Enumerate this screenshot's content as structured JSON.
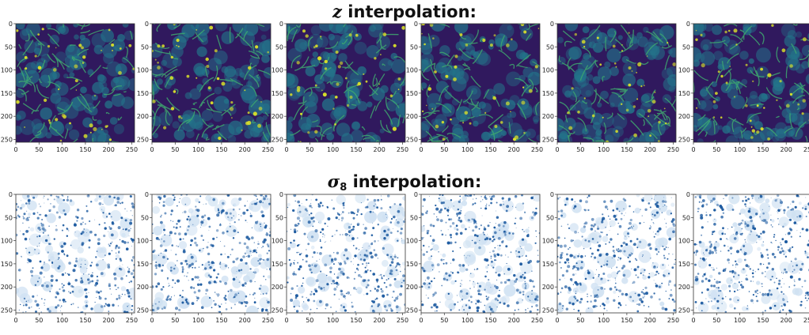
{
  "title_z": {
    "symbol": "z",
    "text": "interpolation:"
  },
  "title_sigma": {
    "symbol": "σ",
    "subscript": "8",
    "text": "interpolation:"
  },
  "ticks": {
    "y": [
      "0",
      "50",
      "100",
      "150",
      "200",
      "250"
    ],
    "x": [
      "0",
      "50",
      "100",
      "150",
      "200",
      "250"
    ]
  },
  "rows": [
    {
      "name": "z-interpolation",
      "colormap": "viridis",
      "panel_count": 6
    },
    {
      "name": "sigma8-interpolation",
      "colormap": "blues-on-white",
      "panel_count": 6
    }
  ],
  "colors": {
    "viridis_dark": "#30195e",
    "viridis_mid": "#23748a",
    "viridis_green": "#3ea86e",
    "viridis_yellow": "#d9e02a",
    "blue_dark": "#1c5aa0",
    "blue_light": "#cfe1f2"
  }
}
